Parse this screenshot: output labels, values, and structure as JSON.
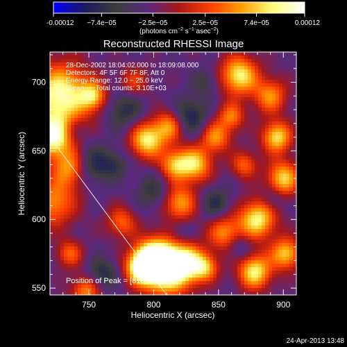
{
  "chart_data": {
    "type": "heatmap",
    "title": "Reconstructed RHESSI Image",
    "xlabel": "Heliocentric X (arcsec)",
    "ylabel": "Heliocentric Y (arcsec)",
    "xlim": [
      720,
      910
    ],
    "ylim": [
      545,
      722
    ],
    "x_ticks": [
      750,
      800,
      850,
      900
    ],
    "x_tick_labels": [
      "750",
      "800",
      "850",
      "900"
    ],
    "y_ticks": [
      550,
      600,
      650,
      700
    ],
    "y_tick_labels": [
      "550",
      "600",
      "650",
      "700"
    ],
    "colorbar": {
      "range": [
        -0.00012,
        0.00012
      ],
      "tick_values": [
        -0.00012,
        -7.4e-05,
        -2.5e-05,
        2.5e-05,
        7.4e-05,
        0.00012
      ],
      "tick_labels": [
        "-0.00012",
        "−7.4e−05",
        "−2.5e−05",
        "2.5e−05",
        "7.4e−05",
        "0.00012"
      ],
      "units_label": "(photons cm",
      "units_exp1": "−2",
      "units_mid": " s",
      "units_exp2": "−1",
      "units_mid2": " asec",
      "units_exp3": "−2",
      "units_end": ")",
      "colors": [
        "#0000ff",
        "#1a1a60",
        "#3c3c3c",
        "#5a2a80",
        "#a81818",
        "#ff4000",
        "#ffa000",
        "#ffff80",
        "#ffffff"
      ]
    },
    "info_lines": [
      "28-Dec-2002 18:04:02.000 to 18:09:08.000",
      "Detectors: 4F 5F 6F 7F 8F, Att 0",
      "Energy Range: 12.0 − 25.0 keV",
      "Clean      Total counts: 3.10E+03"
    ],
    "peak_label": "Position of Peak = [810,564]",
    "peak": [
      810,
      564
    ],
    "limb_line": [
      [
        720,
        660
      ],
      [
        810,
        545
      ]
    ],
    "sources": [
      [
        810,
        565,
        14,
        1.0
      ],
      [
        800,
        570,
        10,
        0.85
      ],
      [
        790,
        565,
        8,
        0.7
      ],
      [
        826,
        568,
        9,
        0.6
      ],
      [
        728,
        690,
        16,
        0.9
      ],
      [
        722,
        660,
        10,
        0.85
      ],
      [
        736,
        638,
        10,
        0.6
      ],
      [
        723,
        612,
        12,
        0.55
      ],
      [
        753,
        690,
        7,
        0.6
      ],
      [
        795,
        658,
        9,
        0.8
      ],
      [
        812,
        668,
        8,
        0.55
      ],
      [
        816,
        640,
        8,
        0.6
      ],
      [
        832,
        640,
        9,
        0.7
      ],
      [
        848,
        660,
        8,
        0.55
      ],
      [
        866,
        705,
        10,
        0.8
      ],
      [
        860,
        675,
        7,
        0.5
      ],
      [
        895,
        660,
        8,
        0.75
      ],
      [
        890,
        690,
        9,
        0.55
      ],
      [
        900,
        630,
        9,
        0.7
      ],
      [
        880,
        600,
        10,
        0.8
      ],
      [
        878,
        562,
        9,
        0.8
      ],
      [
        902,
        575,
        8,
        0.7
      ],
      [
        855,
        590,
        9,
        0.55
      ],
      [
        820,
        612,
        9,
        0.6
      ],
      [
        840,
        565,
        7,
        0.55
      ],
      [
        775,
        598,
        8,
        0.45
      ],
      [
        748,
        548,
        8,
        0.55
      ],
      [
        735,
        575,
        7,
        0.45
      ],
      [
        785,
        700,
        8,
        0.35
      ],
      [
        870,
        640,
        7,
        0.45
      ]
    ],
    "dips": [
      [
        752,
        640,
        10,
        0.9
      ],
      [
        778,
        680,
        10,
        0.7
      ],
      [
        828,
        675,
        9,
        0.9
      ],
      [
        840,
        700,
        7,
        0.5
      ],
      [
        770,
        640,
        7,
        0.5
      ],
      [
        800,
        620,
        9,
        0.6
      ],
      [
        848,
        612,
        8,
        0.7
      ],
      [
        866,
        580,
        7,
        0.55
      ],
      [
        760,
        560,
        8,
        0.8
      ],
      [
        892,
        615,
        6,
        0.5
      ],
      [
        820,
        590,
        7,
        0.45
      ],
      [
        738,
        665,
        6,
        0.35
      ]
    ],
    "background_level": 0.08
  },
  "timestamp": "24-Apr-2013 13:48"
}
